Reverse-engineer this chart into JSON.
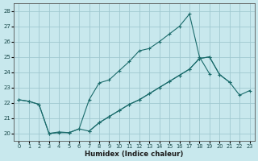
{
  "title": "",
  "xlabel": "Humidex (Indice chaleur)",
  "bg_color": "#c8e8ed",
  "grid_color": "#a0c8d0",
  "line_color": "#1a6b6b",
  "xlim": [
    -0.5,
    23.5
  ],
  "ylim": [
    19.5,
    28.5
  ],
  "yticks": [
    20,
    21,
    22,
    23,
    24,
    25,
    26,
    27,
    28
  ],
  "xticks": [
    0,
    1,
    2,
    3,
    4,
    5,
    6,
    7,
    8,
    9,
    10,
    11,
    12,
    13,
    14,
    15,
    16,
    17,
    18,
    19,
    20,
    21,
    22,
    23
  ],
  "line1_x": [
    0,
    1,
    2,
    3,
    4,
    5,
    6,
    7,
    8,
    9,
    10,
    11,
    12,
    13,
    14,
    15,
    16,
    17,
    18,
    19,
    20
  ],
  "line1_y": [
    22.2,
    22.1,
    21.9,
    20.0,
    20.1,
    20.05,
    20.3,
    22.2,
    23.3,
    23.5,
    24.1,
    24.7,
    25.4,
    25.55,
    26.0,
    26.5,
    27.0,
    27.8,
    25.0,
    23.9,
    null
  ],
  "line2_x": [
    0,
    1,
    2,
    3,
    4,
    5,
    6,
    7,
    8,
    9,
    10,
    11,
    12,
    13,
    14,
    15,
    16,
    17,
    18,
    19,
    20,
    21,
    22,
    23
  ],
  "line2_y": [
    22.2,
    22.1,
    21.9,
    20.0,
    20.05,
    20.05,
    20.3,
    20.15,
    20.7,
    21.1,
    21.5,
    21.9,
    22.2,
    22.6,
    23.0,
    23.4,
    23.8,
    24.2,
    24.9,
    25.0,
    23.85,
    23.35,
    null,
    null
  ],
  "line3_x": [
    7,
    8,
    9,
    10,
    11,
    12,
    13,
    14,
    15,
    16,
    17,
    18,
    19,
    20,
    21,
    22,
    23
  ],
  "line3_y": [
    20.15,
    20.7,
    21.1,
    21.5,
    21.9,
    22.2,
    22.6,
    23.0,
    23.4,
    23.8,
    24.2,
    24.9,
    25.0,
    23.85,
    23.35,
    22.5,
    22.8
  ]
}
